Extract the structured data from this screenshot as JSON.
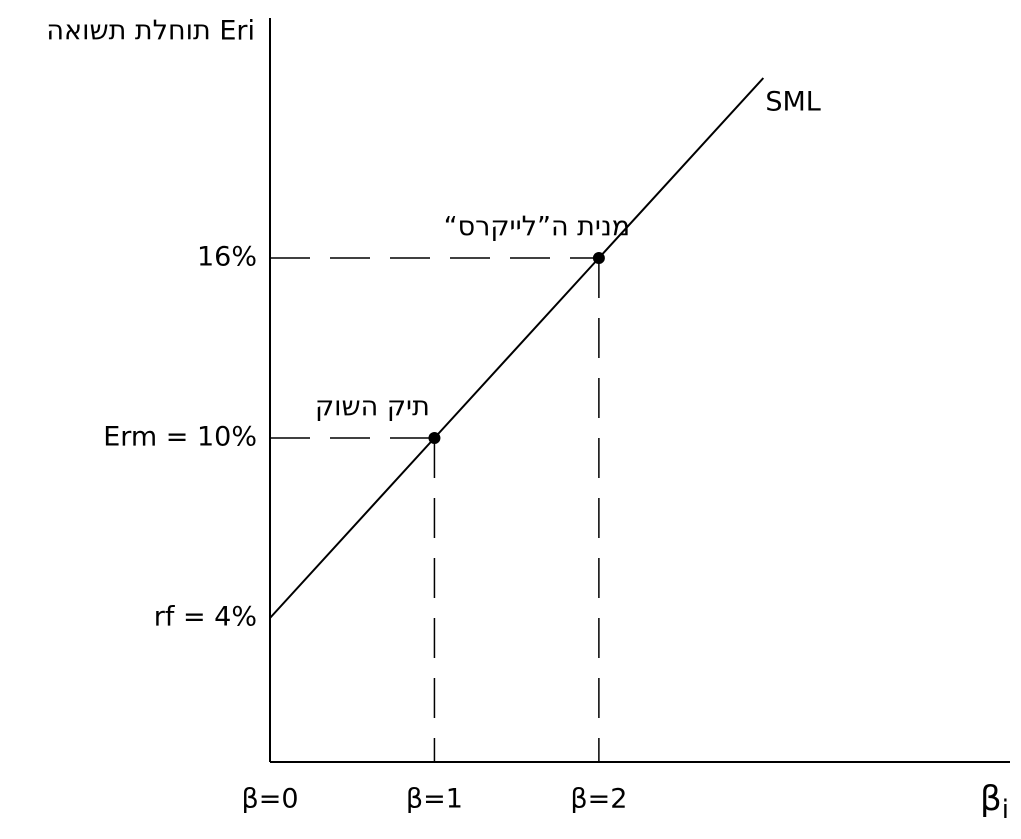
{
  "chart_data": {
    "type": "line",
    "y_label": "תוחלת תשואה Eri",
    "x_label": "β",
    "x_label_subscript": "i",
    "xlim": [
      0,
      4.5
    ],
    "ylim": [
      -0.8,
      24
    ],
    "xticks": [
      {
        "value": 0,
        "label": "β=0"
      },
      {
        "value": 1,
        "label": "β=1"
      },
      {
        "value": 2,
        "label": "β=2"
      }
    ],
    "yticks": [
      {
        "value": 4,
        "label": "rf = 4%"
      },
      {
        "value": 10,
        "label": "Erm = 10%"
      },
      {
        "value": 16,
        "label": "16%"
      }
    ],
    "series": [
      {
        "name": "SML",
        "color": "#000000",
        "x": [
          0,
          1,
          2,
          3
        ],
        "values": [
          4,
          10,
          16,
          22
        ]
      }
    ],
    "points": [
      {
        "label": "תיק השוק",
        "x": 1,
        "y": 10
      },
      {
        "label": "מנית ה”לייקרס“",
        "x": 2,
        "y": 16
      }
    ]
  }
}
